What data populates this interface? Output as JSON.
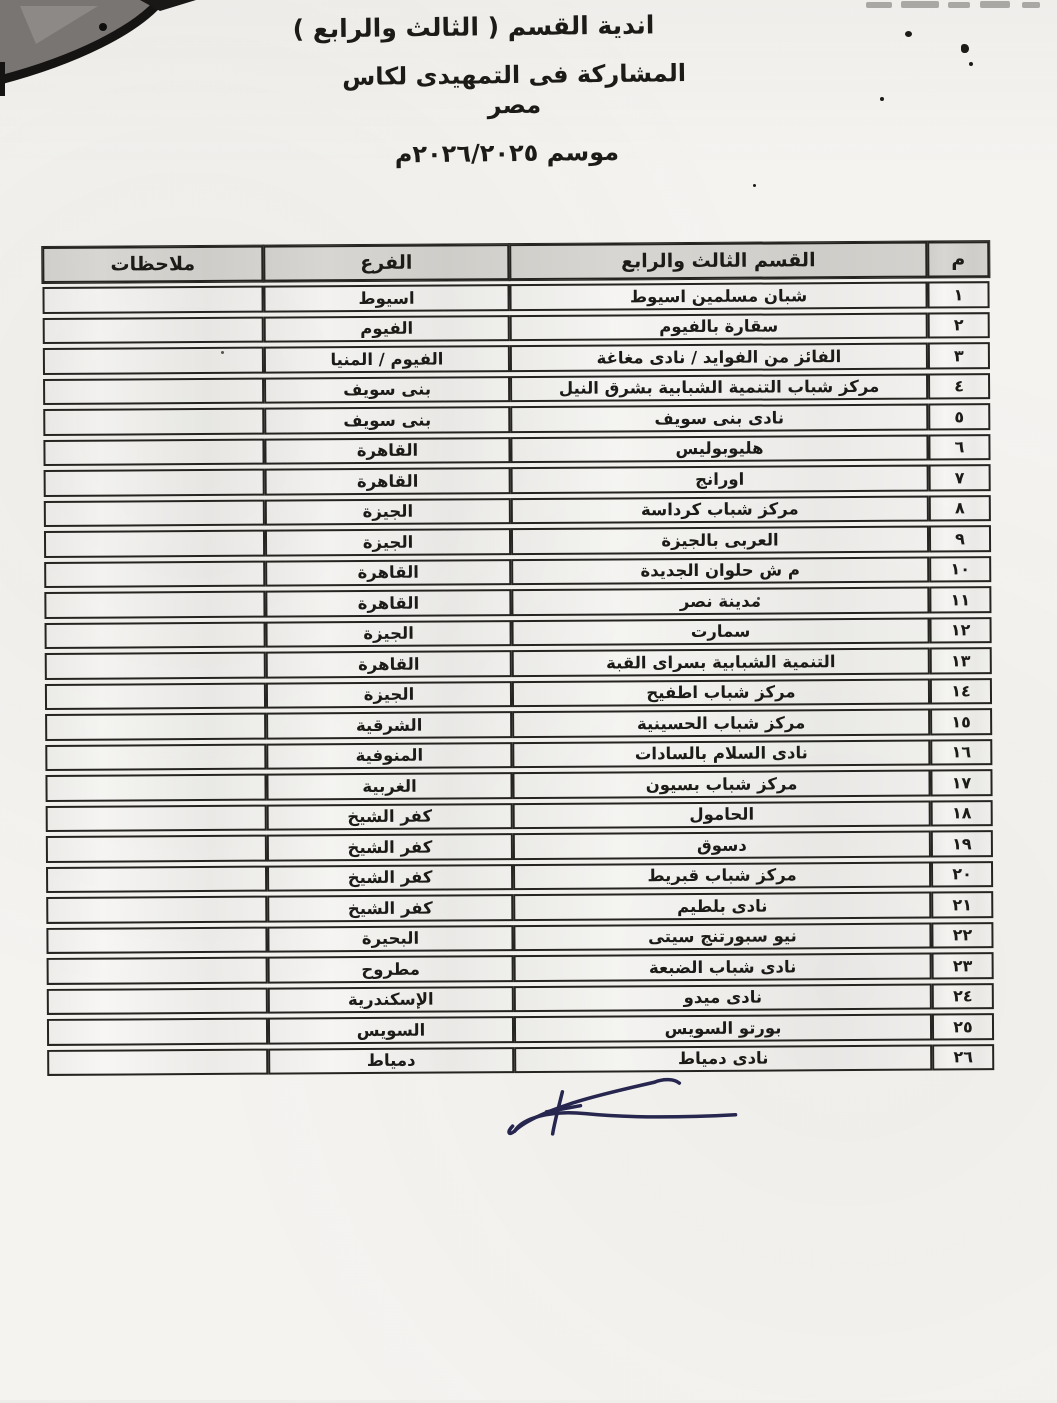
{
  "page": {
    "title_line1": "اندية القسم ( الثالث والرابع )",
    "title_line2": "المشاركة فى التمهيدى لكاس مصر",
    "title_line3": "موسم ٢٠٢٦/٢٠٢٥م"
  },
  "table": {
    "headers": {
      "num": "م",
      "club": "القسم الثالث والرابع",
      "branch": "الفرع",
      "notes": "ملاحظات"
    },
    "rows": [
      {
        "num": "١",
        "club": "شبان مسلمين اسيوط",
        "branch": "اسيوط",
        "notes": ""
      },
      {
        "num": "٢",
        "club": "سقارة بالفيوم",
        "branch": "الفيوم",
        "notes": ""
      },
      {
        "num": "٣",
        "club": "الفائز من الفوايد / نادى مغاغة",
        "branch": "الفيوم / المنيا",
        "notes": ""
      },
      {
        "num": "٤",
        "club": "مركز شباب التنمية الشبابية بشرق النيل",
        "branch": "بنى سويف",
        "notes": ""
      },
      {
        "num": "٥",
        "club": "نادى بنى سويف",
        "branch": "بنى سويف",
        "notes": ""
      },
      {
        "num": "٦",
        "club": "هليوبوليس",
        "branch": "القاهرة",
        "notes": ""
      },
      {
        "num": "٧",
        "club": "اورانج",
        "branch": "القاهرة",
        "notes": ""
      },
      {
        "num": "٨",
        "club": "مركز شباب كرداسة",
        "branch": "الجيزة",
        "notes": ""
      },
      {
        "num": "٩",
        "club": "العربى بالجيزة",
        "branch": "الجيزة",
        "notes": ""
      },
      {
        "num": "١٠",
        "club": "م ش حلوان الجديدة",
        "branch": "القاهرة",
        "notes": ""
      },
      {
        "num": "١١",
        "club": "مدينة نصر",
        "branch": "القاهرة",
        "notes": ""
      },
      {
        "num": "١٢",
        "club": "سمارت",
        "branch": "الجيزة",
        "notes": ""
      },
      {
        "num": "١٣",
        "club": "التنمية الشبابية بسراى القبة",
        "branch": "القاهرة",
        "notes": ""
      },
      {
        "num": "١٤",
        "club": "مركز شباب اطفيح",
        "branch": "الجيزة",
        "notes": ""
      },
      {
        "num": "١٥",
        "club": "مركز شباب الحسينية",
        "branch": "الشرقية",
        "notes": ""
      },
      {
        "num": "١٦",
        "club": "نادى السلام بالسادات",
        "branch": "المنوفية",
        "notes": ""
      },
      {
        "num": "١٧",
        "club": "مركز شباب بسيون",
        "branch": "الغربية",
        "notes": ""
      },
      {
        "num": "١٨",
        "club": "الحامول",
        "branch": "كفر الشيخ",
        "notes": ""
      },
      {
        "num": "١٩",
        "club": "دسوق",
        "branch": "كفر الشيخ",
        "notes": ""
      },
      {
        "num": "٢٠",
        "club": "مركز شباب قبريط",
        "branch": "كفر الشيخ",
        "notes": ""
      },
      {
        "num": "٢١",
        "club": "نادى بلطيم",
        "branch": "كفر الشيخ",
        "notes": ""
      },
      {
        "num": "٢٢",
        "club": "نيو سبورتنج سيتى",
        "branch": "البحيرة",
        "notes": ""
      },
      {
        "num": "٢٣",
        "club": "نادى شباب الضبعة",
        "branch": "مطروح",
        "notes": ""
      },
      {
        "num": "٢٤",
        "club": "نادى ميدو",
        "branch": "الإسكندرية",
        "notes": ""
      },
      {
        "num": "٢٥",
        "club": "بورتو السويس",
        "branch": "السويس",
        "notes": ""
      },
      {
        "num": "٢٦",
        "club": "نادى دمياط",
        "branch": "دمياط",
        "notes": ""
      }
    ]
  },
  "colors": {
    "ink": "#1c1b18",
    "line": "#262421",
    "header_bg": "#d8d6d2",
    "signature_ink": "#26264f"
  }
}
